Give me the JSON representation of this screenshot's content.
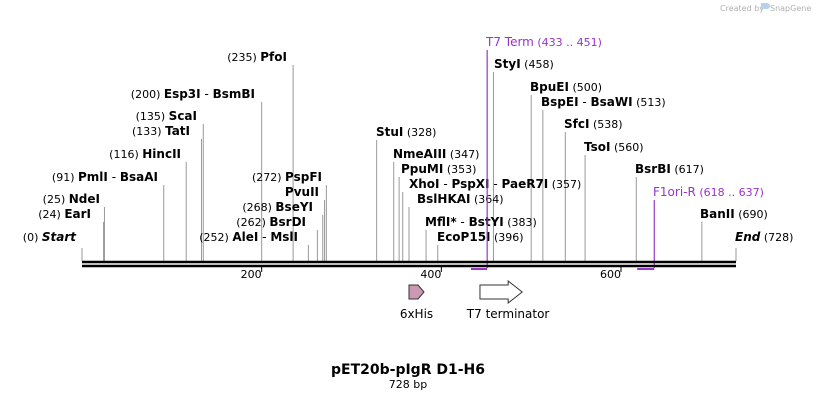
{
  "credit": {
    "text": "Created by",
    "brand": "SnapGene"
  },
  "plasmid": {
    "name": "pET20b-pIgR D1-H6",
    "length_text": "728 bp",
    "length": 728
  },
  "axis_ticks": [
    {
      "pos": 200,
      "label": "200"
    },
    {
      "pos": 400,
      "label": "400"
    },
    {
      "pos": 600,
      "label": "600"
    }
  ],
  "sites": [
    {
      "id": "start",
      "pos_text": "(0)",
      "name": "Start",
      "pos": 0,
      "italic": true
    },
    {
      "id": "eari",
      "pos_text": "(24)",
      "name": "EarI",
      "pos": 24
    },
    {
      "id": "ndei",
      "pos_text": "(25)",
      "name": "NdeI",
      "pos": 25
    },
    {
      "id": "pmli",
      "pos_text": "(91)",
      "name": "PmlI",
      "sep": " - ",
      "name2": "BsaAI",
      "pos": 91
    },
    {
      "id": "hincii",
      "pos_text": "(116)",
      "name": "HincII",
      "pos": 116
    },
    {
      "id": "tati",
      "pos_text": "(133)",
      "name": "TatI",
      "pos": 133
    },
    {
      "id": "scai",
      "pos_text": "(135)",
      "name": "ScaI",
      "pos": 135
    },
    {
      "id": "esp3i",
      "pos_text": "(200)",
      "name": "Esp3I",
      "sep": " - ",
      "name2": "BsmBI",
      "pos": 200
    },
    {
      "id": "pfoi",
      "pos_text": "(235)",
      "name": "PfoI",
      "pos": 235
    },
    {
      "id": "alei",
      "pos_text": "(252)",
      "name": "AleI",
      "sep": " - ",
      "name2": "MslI",
      "pos": 252
    },
    {
      "id": "bsrdi",
      "pos_text": "(262)",
      "name": "BsrDI",
      "pos": 262
    },
    {
      "id": "bseyi",
      "pos_text": "(268)",
      "name": "BseYI",
      "pos": 268
    },
    {
      "id": "pvuii",
      "pos_text": "",
      "name": "PvuII",
      "pos": 270
    },
    {
      "id": "pspfi",
      "pos_text": "(272)",
      "name": "PspFI",
      "pos": 272
    },
    {
      "id": "stui",
      "name": "StuI",
      "pos_text": "(328)",
      "pos": 328
    },
    {
      "id": "nmeaiii",
      "name": "NmeAIII",
      "pos_text": "(347)",
      "pos": 347
    },
    {
      "id": "ppumi",
      "name": "PpuMI",
      "pos_text": "(353)",
      "pos": 353
    },
    {
      "id": "xhoi",
      "name": "XhoI",
      "sep": " - ",
      "name2": "PspXI",
      "sep2": " - ",
      "name3": "PaeR7I",
      "pos_text": "(357)",
      "pos": 357
    },
    {
      "id": "bslhkai",
      "name": "BslHKAI",
      "pos_text": "(364)",
      "pos": 364
    },
    {
      "id": "mfli",
      "name": "MflI",
      "star": "*",
      "sep": " - ",
      "name2": "BstYI",
      "pos_text": "(383)",
      "pos": 383
    },
    {
      "id": "ecop15i",
      "name": "EcoP15I",
      "pos_text": "(396)",
      "pos": 396
    },
    {
      "id": "styi",
      "name": "StyI",
      "pos_text": "(458)",
      "pos": 458
    },
    {
      "id": "bpuei",
      "name": "BpuEI",
      "pos_text": "(500)",
      "pos": 500
    },
    {
      "id": "bspei",
      "name": "BspEI",
      "sep": " - ",
      "name2": "BsaWI",
      "pos_text": "(513)",
      "pos": 513
    },
    {
      "id": "sfci",
      "name": "SfcI",
      "pos_text": "(538)",
      "pos": 538
    },
    {
      "id": "tsoi",
      "name": "TsoI",
      "pos_text": "(560)",
      "pos": 560
    },
    {
      "id": "bsrbi",
      "name": "BsrBI",
      "pos_text": "(617)",
      "pos": 617
    },
    {
      "id": "banii",
      "name": "BanII",
      "pos_text": "(690)",
      "pos": 690
    },
    {
      "id": "end",
      "name": "End",
      "italic": true,
      "pos_text": "(728)",
      "pos": 728
    }
  ],
  "primers": [
    {
      "id": "t7term",
      "name": "T7 Term",
      "range_text": "(433 .. 451)",
      "start": 433,
      "end": 451
    },
    {
      "id": "f1ori",
      "name": "F1ori-R",
      "range_text": "(618 .. 637)",
      "start": 618,
      "end": 637
    }
  ],
  "features": [
    {
      "id": "his6",
      "name": "6xHis",
      "start": 364,
      "end": 381,
      "color": "#cc99b2"
    },
    {
      "id": "t7terminator",
      "name": "T7 terminator",
      "start": 443,
      "end": 490,
      "color": "#ffffff"
    }
  ],
  "colors": {
    "primer": "#9933cc",
    "backbone": "#000000",
    "tick": "#999999"
  }
}
